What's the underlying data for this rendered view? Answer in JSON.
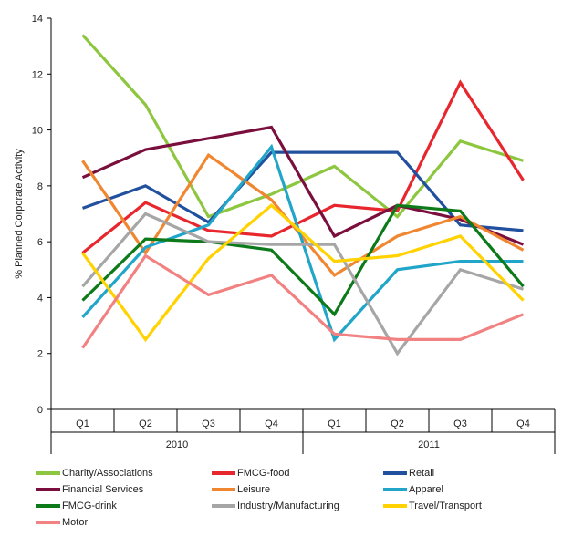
{
  "chart_data": {
    "type": "line",
    "categories": [
      "Q1",
      "Q2",
      "Q3",
      "Q4",
      "Q1",
      "Q2",
      "Q3",
      "Q4"
    ],
    "year_groups": [
      {
        "label": "2010",
        "start": 0,
        "end": 3
      },
      {
        "label": "2011",
        "start": 4,
        "end": 7
      }
    ],
    "ylabel": "% Planned Corporate Activity",
    "ylim": [
      0,
      14
    ],
    "yticks": [
      "0",
      "2",
      "4",
      "6",
      "8",
      "10",
      "12",
      "14"
    ],
    "grid": false,
    "legend_position": "bottom",
    "series": [
      {
        "name": "Charity/Associations",
        "color": "#8dc63f",
        "values": [
          13.4,
          10.9,
          6.9,
          7.7,
          8.7,
          6.9,
          9.6,
          8.9
        ]
      },
      {
        "name": "FMCG-food",
        "color": "#e8262d",
        "values": [
          5.6,
          7.4,
          6.4,
          6.2,
          7.3,
          7.1,
          11.7,
          8.2
        ]
      },
      {
        "name": "Retail",
        "color": "#21519e",
        "values": [
          7.2,
          8.0,
          6.7,
          9.2,
          9.2,
          9.2,
          6.6,
          6.4
        ]
      },
      {
        "name": "Financial Services",
        "color": "#7a0f3d",
        "values": [
          8.3,
          9.3,
          9.7,
          10.1,
          6.2,
          7.3,
          6.8,
          5.9
        ]
      },
      {
        "name": "Leisure",
        "color": "#f08730",
        "values": [
          8.9,
          5.6,
          9.1,
          7.5,
          4.8,
          6.2,
          6.9,
          5.7
        ]
      },
      {
        "name": "Apparel",
        "color": "#21a5c8",
        "values": [
          3.3,
          5.8,
          6.6,
          9.4,
          2.5,
          5.0,
          5.3,
          5.3
        ]
      },
      {
        "name": "FMCG-drink",
        "color": "#0d7a1a",
        "values": [
          3.9,
          6.1,
          6.0,
          5.7,
          3.4,
          7.3,
          7.1,
          4.4
        ]
      },
      {
        "name": "Industry/Manufacturing",
        "color": "#a6a6a6",
        "values": [
          4.4,
          7.0,
          6.0,
          5.9,
          5.9,
          2.0,
          5.0,
          4.3
        ]
      },
      {
        "name": "Travel/Transport",
        "color": "#ffd200",
        "values": [
          5.6,
          2.5,
          5.4,
          7.3,
          5.3,
          5.5,
          6.2,
          3.9
        ]
      },
      {
        "name": "Motor",
        "color": "#f28282",
        "values": [
          2.2,
          5.5,
          4.1,
          4.8,
          2.7,
          2.5,
          2.5,
          3.4
        ]
      }
    ]
  }
}
